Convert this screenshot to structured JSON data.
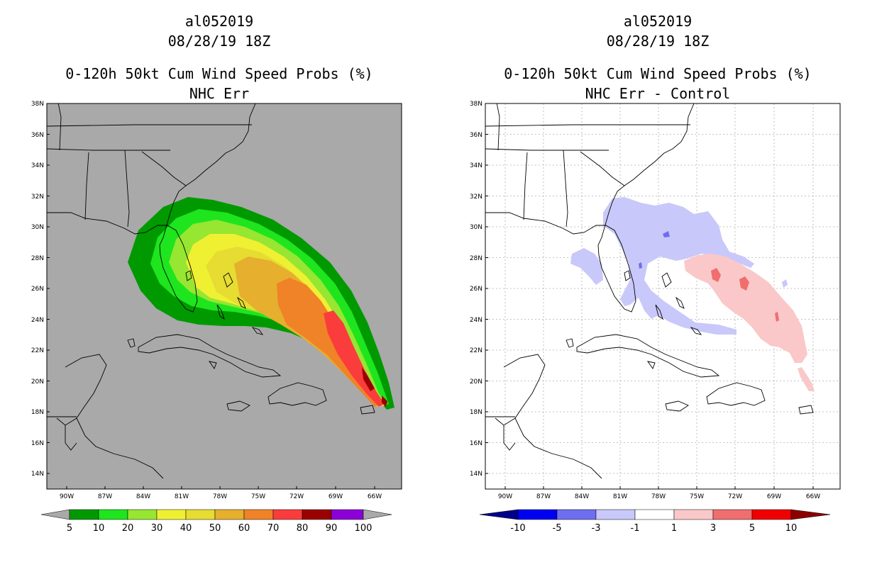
{
  "panels": {
    "left": {
      "storm_id": "al052019",
      "datetime": "08/28/19 18Z",
      "product": "0-120h 50kt Cum Wind Speed Probs (%)",
      "subtitle": "NHC Err",
      "background_color": "#a9a9a9",
      "colorbar": {
        "labels": [
          "5",
          "10",
          "20",
          "30",
          "40",
          "50",
          "60",
          "70",
          "80",
          "90",
          "100"
        ],
        "colors": [
          "#009a00",
          "#1ee51e",
          "#96e632",
          "#f0f032",
          "#e6dc32",
          "#e6af2d",
          "#f08228",
          "#fa3c3c",
          "#9b0000",
          "#8c00d7"
        ]
      }
    },
    "right": {
      "storm_id": "al052019",
      "datetime": "08/28/19 18Z",
      "product": "0-120h 50kt Cum Wind Speed Probs (%)",
      "subtitle": "NHC Err - Control",
      "background_color": "#ffffff",
      "colorbar": {
        "labels": [
          "-10",
          "-5",
          "-3",
          "-1",
          "1",
          "3",
          "5",
          "10"
        ],
        "colors": [
          "#00008c",
          "#0000f0",
          "#6e6ef0",
          "#c8c8fa",
          "#ffffff",
          "#fac8c8",
          "#f06e6e",
          "#f00000",
          "#8c0000"
        ]
      }
    }
  },
  "map": {
    "lat_labels": [
      "38N",
      "36N",
      "34N",
      "32N",
      "30N",
      "28N",
      "26N",
      "24N",
      "22N",
      "20N",
      "18N",
      "16N",
      "14N"
    ],
    "lon_labels": [
      "90W",
      "87W",
      "84W",
      "81W",
      "78W",
      "75W",
      "72W",
      "69W",
      "66W"
    ]
  }
}
